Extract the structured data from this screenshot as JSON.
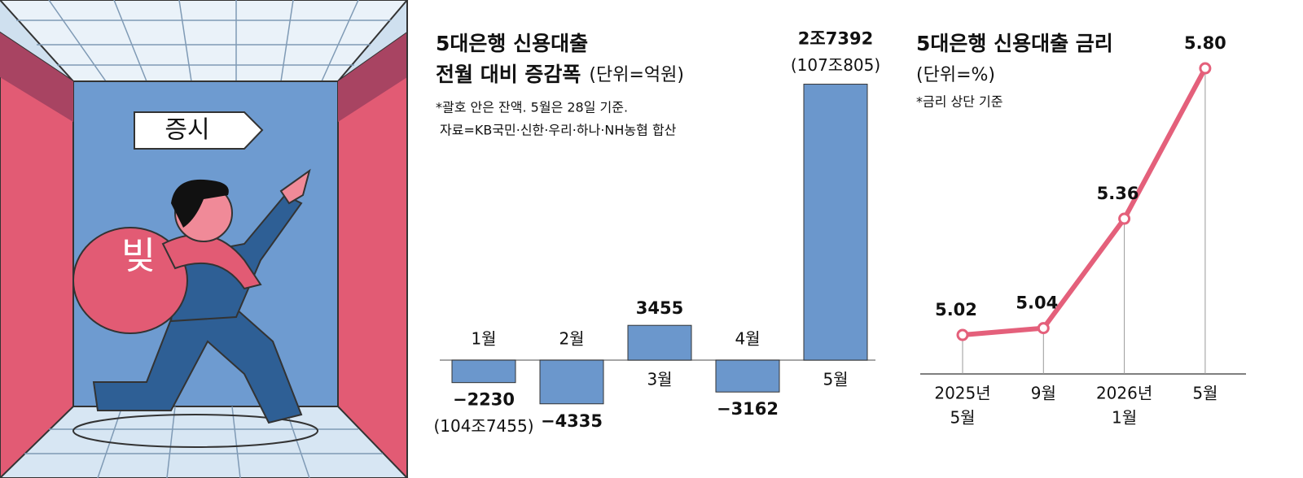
{
  "illustration": {
    "sign": "증시",
    "bag": "빚"
  },
  "chart_data": [
    {
      "type": "bar",
      "title_lines": [
        "5대은행 신용대출",
        "전월 대비 증감폭"
      ],
      "unit": "(단위=억원)",
      "notes": [
        "*괄호 안은 잔액. 5월은 28일 기준.",
        "자료=KB국민·신한·우리·하나·NH농협 합산"
      ],
      "categories": [
        "1월",
        "2월",
        "3월",
        "4월",
        "5월"
      ],
      "values": [
        -2230,
        -4335,
        3455,
        -3162,
        27392
      ],
      "value_labels": [
        "−2230",
        "−4335",
        "3455",
        "−3162",
        "2조7392"
      ],
      "balance_labels": [
        "(104조7455)",
        null,
        null,
        null,
        "(107조805)"
      ],
      "color": "#6b97cc",
      "ylim": [
        -5000,
        28000
      ]
    },
    {
      "type": "line",
      "title": "5대은행 신용대출 금리",
      "unit": "(단위=%)",
      "note": "*금리 상단 기준",
      "categories": [
        [
          "2025년",
          "5월"
        ],
        [
          "9월"
        ],
        [
          "2026년",
          "1월"
        ],
        [
          "5월"
        ]
      ],
      "values": [
        5.02,
        5.04,
        5.36,
        5.8
      ],
      "value_labels": [
        "5.02",
        "5.04",
        "5.36",
        "5.80"
      ],
      "color": "#e4607b",
      "ylim": [
        4.9,
        5.85
      ]
    }
  ]
}
